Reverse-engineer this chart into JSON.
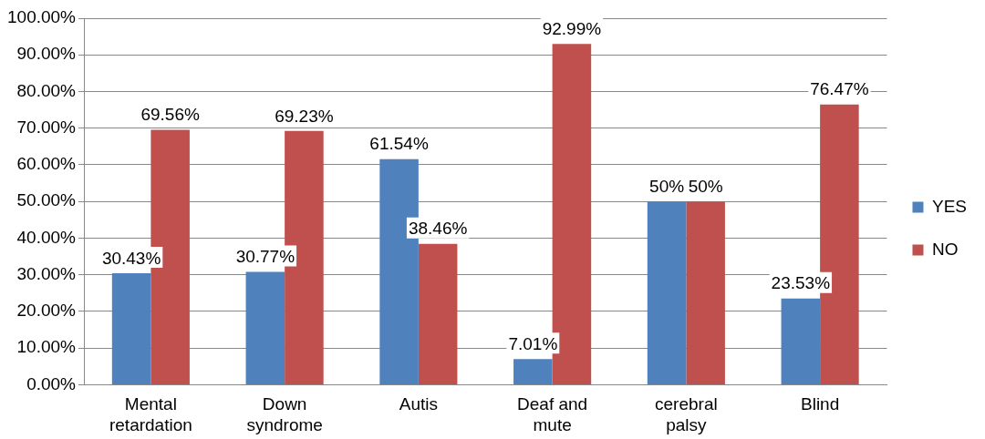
{
  "chart_data": {
    "type": "bar",
    "categories": [
      "Mental\nretardation",
      "Down\nsyndrome",
      "Autis",
      "Deaf and\nmute",
      "cerebral\npalsy",
      "Blind"
    ],
    "series": [
      {
        "name": "YES",
        "color": "#4f81bd",
        "values": [
          30.43,
          30.77,
          61.54,
          7.01,
          50,
          23.53
        ],
        "value_labels": [
          "30.43%",
          "30.77%",
          "61.54%",
          "7.01%",
          "50%",
          "23.53%"
        ]
      },
      {
        "name": "NO",
        "color": "#c0504d",
        "values": [
          69.56,
          69.23,
          38.46,
          92.99,
          50,
          76.47
        ],
        "value_labels": [
          "69.56%",
          "69.23%",
          "38.46%",
          "92.99%",
          "50%",
          "76.47%"
        ]
      }
    ],
    "ylim": [
      0,
      100
    ],
    "yticks": [
      {
        "value": 0,
        "label": "0.00%"
      },
      {
        "value": 10,
        "label": "10.00%"
      },
      {
        "value": 20,
        "label": "20.00%"
      },
      {
        "value": 30,
        "label": "30.00%"
      },
      {
        "value": 40,
        "label": "40.00%"
      },
      {
        "value": 50,
        "label": "50.00%"
      },
      {
        "value": 60,
        "label": "60.00%"
      },
      {
        "value": 70,
        "label": "70.00%"
      },
      {
        "value": 80,
        "label": "80.00%"
      },
      {
        "value": 90,
        "label": "90.00%"
      },
      {
        "value": 100,
        "label": "100.00%"
      }
    ],
    "grid": "y",
    "legend": "right"
  }
}
